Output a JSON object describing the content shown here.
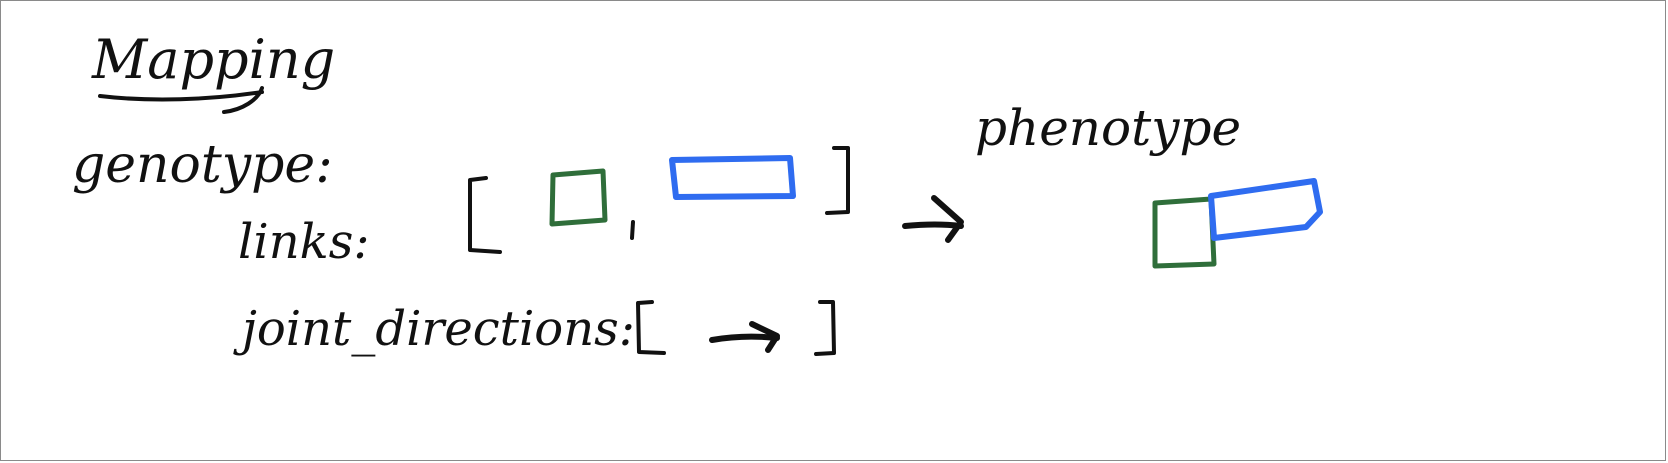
{
  "diagram": {
    "title": "Mapping",
    "genotype_label": "genotype:",
    "links_label": "links:",
    "joint_directions_label": "joint_directions:",
    "phenotype_label": "phenotype",
    "colors": {
      "ink": "#111111",
      "green_link": "#2f6e3a",
      "blue_link": "#2f6cf0",
      "frame": "#8a8a8a"
    },
    "icons": {
      "green_link": "green-square-link",
      "blue_link": "blue-rectangle-link",
      "mapping_arrow": "right-arrow",
      "joint_direction": "right-arrow"
    }
  }
}
